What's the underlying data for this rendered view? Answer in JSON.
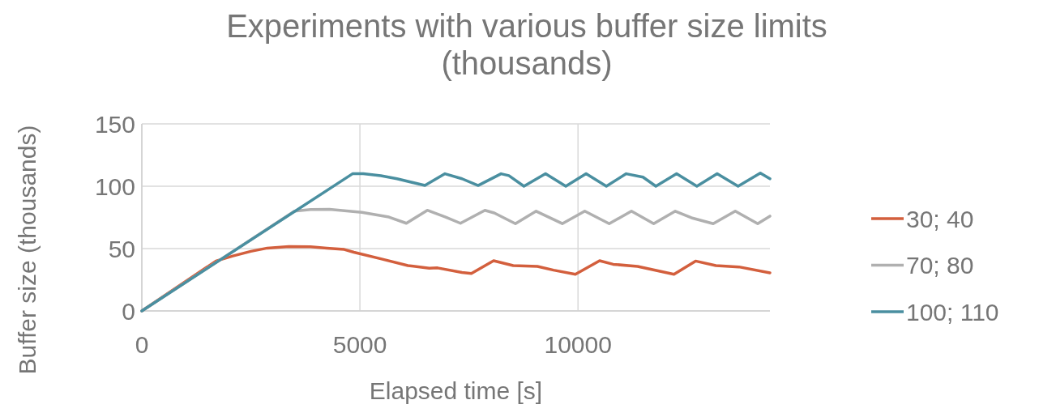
{
  "chart_data": {
    "type": "line",
    "title": "Experiments with various buffer size limits (thousands)",
    "xlabel": "Elapsed time [s]",
    "ylabel": "Buffer size (thousands)",
    "xlim": [
      0,
      14400
    ],
    "xticks": [
      0,
      5000,
      10000
    ],
    "ylim": [
      0,
      150
    ],
    "yticks": [
      0,
      50,
      100,
      150
    ],
    "grid": true,
    "legend": "right",
    "line_style": "solid",
    "marker": "none",
    "series": [
      {
        "name": "30; 40",
        "color": "#d35f3d",
        "x": [
          0,
          1700,
          2070,
          2500,
          2875,
          3370,
          3865,
          4240,
          4640,
          4860,
          5480,
          6100,
          6590,
          6780,
          7340,
          7555,
          8065,
          8515,
          9070,
          9440,
          9940,
          10495,
          10805,
          11365,
          12200,
          12695,
          13160,
          13690,
          14400
        ],
        "values": [
          0,
          40,
          43.9,
          47.8,
          50.4,
          51.7,
          51.5,
          50.4,
          49.3,
          47.1,
          41.8,
          36.4,
          34.2,
          34.5,
          30.9,
          30,
          40.3,
          36.4,
          35.7,
          32.7,
          29.4,
          40.3,
          37.4,
          35.7,
          29.4,
          40,
          36.4,
          35.3,
          30.5
        ]
      },
      {
        "name": "70; 80",
        "color": "#b0b0b0",
        "x": [
          0,
          3500,
          3870,
          4300,
          5045,
          5665,
          6065,
          6545,
          6965,
          7305,
          7865,
          8080,
          8565,
          9040,
          9640,
          10155,
          10715,
          11225,
          11735,
          12230,
          12600,
          13100,
          13605,
          14120,
          14400
        ],
        "values": [
          0,
          80,
          81.4,
          81.5,
          79,
          75.3,
          70.3,
          80.7,
          75.3,
          70.3,
          80.7,
          78.6,
          70,
          80,
          70,
          80,
          70,
          80,
          70,
          80,
          74.7,
          70,
          80,
          70,
          76
        ]
      },
      {
        "name": "100; 110",
        "color": "#4a8fa0",
        "x": [
          0,
          4830,
          5075,
          5480,
          5850,
          6490,
          6950,
          7340,
          7710,
          8235,
          8415,
          8760,
          9255,
          9720,
          10185,
          10650,
          11105,
          11490,
          11785,
          12260,
          12725,
          13190,
          13670,
          14180,
          14400
        ],
        "values": [
          0,
          110,
          110,
          108.4,
          106,
          100.6,
          110,
          106,
          100.6,
          110,
          108.5,
          100,
          110,
          100,
          110,
          100,
          110,
          107.3,
          100,
          110,
          100,
          110,
          100,
          110.6,
          106
        ]
      }
    ]
  }
}
